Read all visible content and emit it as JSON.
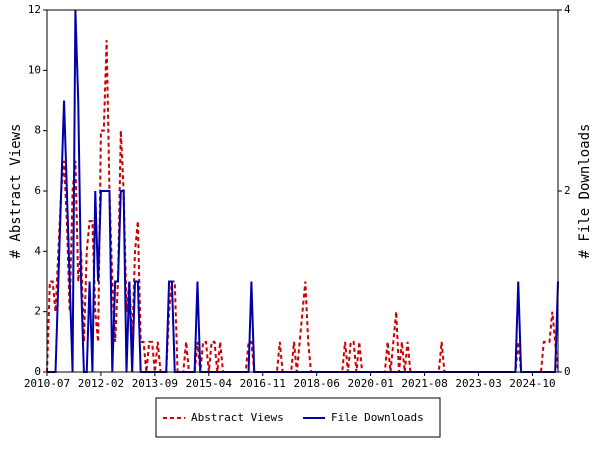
{
  "chart_data": {
    "type": "line",
    "categories": [
      "2010-07",
      null,
      null,
      null,
      null,
      null,
      null,
      null,
      null,
      null,
      null,
      null,
      null,
      null,
      null,
      null,
      null,
      null,
      null,
      "2012-02",
      null,
      null,
      null,
      null,
      null,
      null,
      null,
      null,
      null,
      null,
      null,
      null,
      null,
      null,
      null,
      null,
      null,
      null,
      "2013-09",
      null,
      null,
      null,
      null,
      null,
      null,
      null,
      null,
      null,
      null,
      null,
      null,
      null,
      null,
      null,
      null,
      null,
      null,
      "2015-04",
      null,
      null,
      null,
      null,
      null,
      null,
      null,
      null,
      null,
      null,
      null,
      null,
      null,
      null,
      null,
      null,
      null,
      null,
      "2016-11",
      null,
      null,
      null,
      null,
      null,
      null,
      null,
      null,
      null,
      null,
      null,
      null,
      null,
      null,
      null,
      null,
      null,
      null,
      "2018-06",
      null,
      null,
      null,
      null,
      null,
      null,
      null,
      null,
      null,
      null,
      null,
      null,
      null,
      null,
      null,
      null,
      null,
      null,
      "2020-01",
      null,
      null,
      null,
      null,
      null,
      null,
      null,
      null,
      null,
      null,
      null,
      null,
      null,
      null,
      null,
      null,
      null,
      null,
      "2021-08",
      null,
      null,
      null,
      null,
      null,
      null,
      null,
      null,
      null,
      null,
      null,
      null,
      null,
      null,
      null,
      null,
      null,
      null,
      "2023-03",
      null,
      null,
      null,
      null,
      null,
      null,
      null,
      null,
      null,
      null,
      null,
      null,
      null,
      null,
      null,
      null,
      null,
      null,
      "2024-10",
      null,
      null,
      null,
      null,
      null,
      null,
      null,
      null,
      null
    ],
    "ylabel": "# Abstract Views",
    "y2label": "# File Downloads",
    "ylim": [
      0,
      12
    ],
    "yticks": [
      0,
      2,
      4,
      6,
      8,
      10,
      12
    ],
    "y2lim": [
      0,
      4
    ],
    "y2ticks": [
      0,
      2,
      4
    ],
    "legend": "bottom",
    "series": [
      {
        "name": "Abstract Views",
        "color": "#cc0000",
        "dash": true,
        "values": [
          0,
          3,
          3,
          2,
          4,
          6,
          7,
          5,
          2,
          6,
          7,
          3,
          4,
          1,
          4,
          5,
          5,
          2,
          1,
          8,
          8,
          11,
          6,
          3,
          1,
          3,
          8,
          6,
          2,
          3,
          1,
          4,
          5,
          1,
          1,
          0,
          1,
          1,
          0,
          1,
          0,
          0,
          0,
          2,
          3,
          3,
          0,
          0,
          0,
          1,
          0,
          0,
          0,
          1,
          0,
          1,
          1,
          0,
          1,
          1,
          0,
          1,
          0,
          0,
          0,
          0,
          0,
          0,
          0,
          0,
          0,
          1,
          1,
          0,
          0,
          0,
          0,
          0,
          0,
          0,
          0,
          0,
          1,
          0,
          0,
          0,
          0,
          1,
          0,
          1,
          2,
          3,
          1,
          0,
          0,
          0,
          0,
          0,
          0,
          0,
          0,
          0,
          0,
          0,
          0,
          1,
          0,
          1,
          1,
          0,
          1,
          0,
          0,
          0,
          0,
          0,
          0,
          0,
          0,
          0,
          1,
          0,
          1,
          2,
          0,
          1,
          0,
          1,
          0,
          0,
          0,
          0,
          0,
          0,
          0,
          0,
          0,
          0,
          0,
          1,
          0,
          0,
          0,
          0,
          0,
          0,
          0,
          0,
          0,
          0,
          0,
          0,
          0,
          0,
          0,
          0,
          0,
          0,
          0,
          0,
          0,
          0,
          0,
          0,
          0,
          0,
          1,
          0,
          0,
          0,
          0,
          0,
          0,
          0,
          0,
          1,
          1,
          1,
          2,
          1,
          0
        ]
      },
      {
        "name": "File Downloads",
        "color": "#0000aa",
        "dash": false,
        "axis": "y2",
        "values": [
          0,
          0,
          0,
          0,
          1,
          2,
          3,
          2,
          1,
          0,
          4,
          3,
          1,
          0,
          0,
          1,
          0,
          2,
          1,
          2,
          2,
          2,
          2,
          0,
          1,
          1,
          2,
          2,
          0,
          1,
          0,
          1,
          1,
          0,
          0,
          0,
          0,
          0,
          0,
          0,
          0,
          0,
          0,
          1,
          1,
          0,
          0,
          0,
          0,
          0,
          0,
          0,
          0,
          1,
          0,
          0,
          0,
          0,
          0,
          0,
          0,
          0,
          0,
          0,
          0,
          0,
          0,
          0,
          0,
          0,
          0,
          0,
          1,
          0,
          0,
          0,
          0,
          0,
          0,
          0,
          0,
          0,
          0,
          0,
          0,
          0,
          0,
          0,
          0,
          0,
          0,
          0,
          0,
          0,
          0,
          0,
          0,
          0,
          0,
          0,
          0,
          0,
          0,
          0,
          0,
          0,
          0,
          0,
          0,
          0,
          0,
          0,
          0,
          0,
          0,
          0,
          0,
          0,
          0,
          0,
          0,
          0,
          0,
          0,
          0,
          0,
          0,
          0,
          0,
          0,
          0,
          0,
          0,
          0,
          0,
          0,
          0,
          0,
          0,
          0,
          0,
          0,
          0,
          0,
          0,
          0,
          0,
          0,
          0,
          0,
          0,
          0,
          0,
          0,
          0,
          0,
          0,
          0,
          0,
          0,
          0,
          0,
          0,
          0,
          0,
          0,
          1,
          0,
          0,
          0,
          0,
          0,
          0,
          0,
          0,
          0,
          0,
          0,
          0,
          0,
          1
        ]
      }
    ]
  }
}
